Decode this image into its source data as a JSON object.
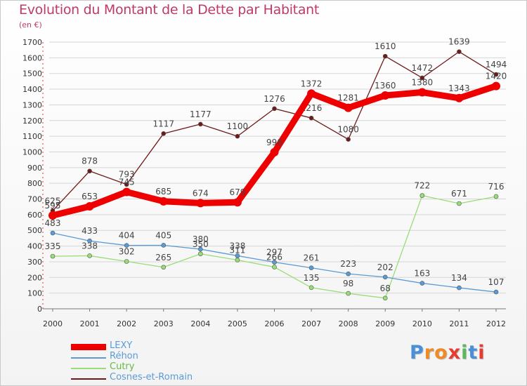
{
  "title": "Evolution du Montant de la Dette par Habitant",
  "subtitle": "(en €)",
  "logo": "Proxiti",
  "chart_data": {
    "type": "line",
    "x": [
      "2000",
      "2001",
      "2002",
      "2003",
      "2004",
      "2005",
      "2006",
      "2007",
      "2008",
      "2009",
      "2010",
      "2011",
      "2012"
    ],
    "ylim": [
      0,
      1700
    ],
    "yticks": [
      0,
      100,
      200,
      300,
      400,
      500,
      600,
      700,
      800,
      900,
      1000,
      1100,
      1200,
      1300,
      1400,
      1500,
      1600,
      1700
    ],
    "grid": "horizontal",
    "legend": "bottom-left",
    "series": [
      {
        "name": "Cosnes-et-Romain",
        "color": "#6e1a1a",
        "values": [
          625,
          878,
          793,
          1117,
          1177,
          1100,
          1276,
          1216,
          1080,
          1610,
          1472,
          1639,
          1494
        ]
      },
      {
        "name": "Cutry",
        "color": "#99dd77",
        "values": [
          335,
          338,
          302,
          265,
          350,
          311,
          266,
          135,
          98,
          68,
          722,
          671,
          716
        ]
      },
      {
        "name": "Réhon",
        "color": "#5b9bd5",
        "values": [
          483,
          433,
          404,
          405,
          380,
          338,
          297,
          261,
          223,
          202,
          163,
          134,
          107
        ]
      },
      {
        "name": "LEXY",
        "color": "#ee0000",
        "values": [
          595,
          653,
          745,
          685,
          674,
          679,
          998,
          1372,
          1281,
          1360,
          1380,
          1343,
          1420
        ]
      }
    ],
    "legend_order": [
      "LEXY",
      "Réhon",
      "Cutry",
      "Cosnes-et-Romain"
    ]
  }
}
